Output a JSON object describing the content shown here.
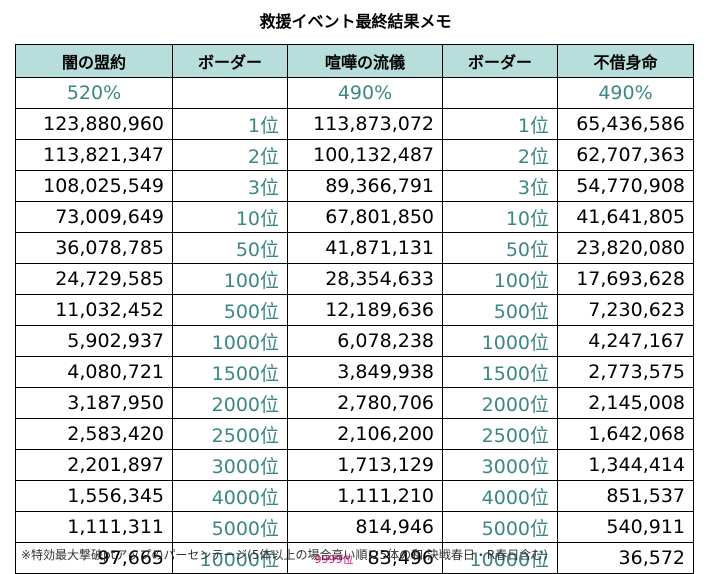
{
  "title": "救援イベント最終結果メモ",
  "headers": [
    "闇の盟約",
    "ボーダー",
    "喧嘩の流儀",
    "ボーダー",
    "不借身命"
  ],
  "percents": [
    "520%",
    "",
    "490%",
    "",
    "490%"
  ],
  "rows": [
    {
      "c1": "123,880,960",
      "r1": "1位",
      "c2": "113,873,072",
      "r2": "1位",
      "c3": "65,436,586"
    },
    {
      "c1": "113,821,347",
      "r1": "2位",
      "c2": "100,132,487",
      "r2": "2位",
      "c3": "62,707,363"
    },
    {
      "c1": "108,025,549",
      "r1": "3位",
      "c2": "89,366,791",
      "r2": "3位",
      "c3": "54,770,908"
    },
    {
      "c1": "73,009,649",
      "r1": "10位",
      "c2": "67,801,850",
      "r2": "10位",
      "c3": "41,641,805"
    },
    {
      "c1": "36,078,785",
      "r1": "50位",
      "c2": "41,871,131",
      "r2": "50位",
      "c3": "23,820,080"
    },
    {
      "c1": "24,729,585",
      "r1": "100位",
      "c2": "28,354,633",
      "r2": "100位",
      "c3": "17,693,628"
    },
    {
      "c1": "11,032,452",
      "r1": "500位",
      "c2": "12,189,636",
      "r2": "500位",
      "c3": "7,230,623"
    },
    {
      "c1": "5,902,937",
      "r1": "1000位",
      "c2": "6,078,238",
      "r2": "1000位",
      "c3": "4,247,167"
    },
    {
      "c1": "4,080,721",
      "r1": "1500位",
      "c2": "3,849,938",
      "r2": "1500位",
      "c3": "2,773,575"
    },
    {
      "c1": "3,187,950",
      "r1": "2000位",
      "c2": "2,780,706",
      "r2": "2000位",
      "c3": "2,145,008"
    },
    {
      "c1": "2,583,420",
      "r1": "2500位",
      "c2": "2,106,200",
      "r2": "2500位",
      "c3": "1,642,068"
    },
    {
      "c1": "2,201,897",
      "r1": "3000位",
      "c2": "1,713,129",
      "r2": "3000位",
      "c3": "1,344,414"
    },
    {
      "c1": "1,556,345",
      "r1": "4000位",
      "c2": "1,111,210",
      "r2": "4000位",
      "c3": "851,537"
    },
    {
      "c1": "1,111,311",
      "r1": "5000位",
      "c2": "814,946",
      "r2": "5000位",
      "c3": "540,911"
    },
    {
      "c1": "97,665",
      "r1": "10000位",
      "c2": "83,496",
      "c2_note": "9999位",
      "r2": "10000位",
      "c3": "36,572"
    }
  ],
  "footnote": "※特効最大撃破ptアップのパーセンテージ(5体以上の場合高い順に5体の和 決戦春日・R春日含む)",
  "colors": {
    "header_bg": "#b7dedb",
    "teal_text": "#3d8782",
    "note_pink": "#e6007e"
  }
}
